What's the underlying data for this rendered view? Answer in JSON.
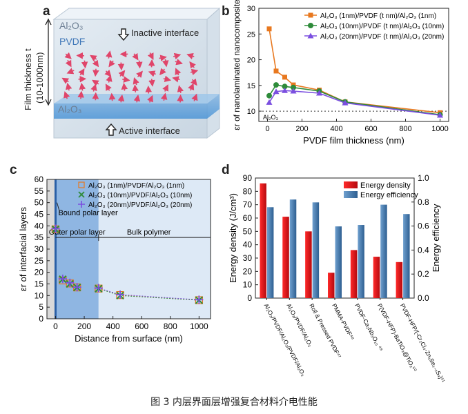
{
  "caption": "图 3  内层界面层增强复合材料介电性能",
  "panel_a": {
    "label": "a",
    "top_layer": "Al₂O₃",
    "middle_layer": "PVDF",
    "bottom_layer": "Al₂O₃",
    "inactive_interface": "Inactive interface",
    "active_interface": "Active interface",
    "thickness_label": "Film thickness t",
    "thickness_range": "(10-1000nm)"
  },
  "chart_data": [
    {
      "panel": "b",
      "type": "line",
      "xlabel": "PVDF film thickness (nm)",
      "ylabel": "εr of nanolaminated nanocomposite",
      "xlim": [
        -50,
        1050
      ],
      "ylim": [
        8,
        30
      ],
      "xticks": [
        0,
        200,
        400,
        600,
        800,
        1000
      ],
      "yticks": [
        10,
        15,
        20,
        25,
        30
      ],
      "reference_line": {
        "y": 10,
        "label": "Al₂O₃"
      },
      "legend_position": "top-right",
      "series": [
        {
          "name": "Al₂O₃ (1nm)/PVDF (t nm)/Al₂O₃ (1nm)",
          "color": "#e8781f",
          "marker": "square",
          "x": [
            10,
            50,
            100,
            150,
            300,
            450,
            1000
          ],
          "y": [
            26,
            17.8,
            16.6,
            15.1,
            14.1,
            11.8,
            9.7
          ]
        },
        {
          "name": "Al₂O₃ (10nm)/PVDF (t nm)/Al₂O₃ (10nm)",
          "color": "#2e8b3a",
          "marker": "circle",
          "x": [
            10,
            50,
            100,
            150,
            300,
            450,
            1000
          ],
          "y": [
            13,
            15.1,
            14.8,
            14.6,
            13.9,
            11.8,
            9.3
          ]
        },
        {
          "name": "Al₂O₃ (20nm)/PVDF (t nm)/Al₂O₃ (20nm)",
          "color": "#7b4fe0",
          "marker": "triangle",
          "x": [
            10,
            50,
            100,
            150,
            300,
            450,
            1000
          ],
          "y": [
            11.7,
            13.8,
            14,
            13.9,
            13.5,
            11.6,
            9.2
          ]
        }
      ]
    },
    {
      "panel": "c",
      "type": "scatter",
      "xlabel": "Distance from surface  (nm)",
      "ylabel": "εr of interfacial layers",
      "xlim": [
        -60,
        1080
      ],
      "ylim": [
        0,
        60
      ],
      "xticks": [
        0,
        200,
        400,
        600,
        800,
        1000
      ],
      "yticks": [
        0,
        5,
        10,
        15,
        20,
        25,
        30,
        35,
        40,
        45,
        50,
        55,
        60
      ],
      "legend_position": "top-right",
      "regions": {
        "bound": "Bound polar layer",
        "outer": "Outer polar layer",
        "bulk": "Bulk polymer"
      },
      "series": [
        {
          "name": "Al₂O₃ (1nm)/PVDF/Al₂O₃ (1nm)",
          "color": "#e8781f",
          "marker": "square-open",
          "x": [
            0,
            50,
            100,
            150,
            300,
            450,
            1000
          ],
          "y": [
            38.5,
            16.5,
            15.2,
            13.5,
            13,
            10.2,
            8
          ]
        },
        {
          "name": "Al₂O₃ (10nm)/PVDF/Al₂O₃ (10nm)",
          "color": "#2e8b3a",
          "marker": "x",
          "x": [
            0,
            50,
            100,
            150,
            300,
            450,
            1000
          ],
          "y": [
            38.5,
            17,
            15,
            13.5,
            13,
            10,
            8
          ]
        },
        {
          "name": "Al₂O₃ (20nm)/PVDF/Al₂O₃ (20nm)",
          "color": "#7b4fe0",
          "marker": "plus",
          "x": [
            0,
            50,
            100,
            150,
            300,
            450,
            1000
          ],
          "y": [
            38.8,
            17.2,
            15.5,
            13.6,
            13.2,
            10.4,
            8.2
          ]
        }
      ]
    },
    {
      "panel": "d",
      "type": "bar",
      "ylabel": "Energy density (J/cm³)",
      "y2label": "Energy efficiency",
      "ylim": [
        0,
        90
      ],
      "y2lim": [
        0,
        1.0
      ],
      "yticks": [
        0,
        10,
        20,
        30,
        40,
        50,
        60,
        70,
        80,
        90
      ],
      "y2ticks": [
        0.0,
        0.2,
        0.4,
        0.6,
        0.8,
        1.0
      ],
      "legend_position": "top-right",
      "categories": [
        "Al₂O₃/PVDF/Al₂O₃/PVDF/Al₂O₃",
        "Al₂O₃/PVDF/Al₂O₃",
        "Roll & Pressed PVDF⁴⁷",
        "PMMA-PVDF⁴⁸",
        "PVDF-Ca₂Nb₃O₁₀ ⁴⁹",
        "P(VDF-HFP)-BaTiO₃@TiO₂⁵⁰",
        "PVDF-HFP/(-Cr₂Cl₃-Zn₁Se₁₋ₓSₓ)⁵¹"
      ],
      "series": [
        {
          "name": "Energy density",
          "color": "#e0141a",
          "axis": "left",
          "values": [
            86,
            61,
            50,
            19,
            36,
            31,
            27
          ]
        },
        {
          "name": "Energy efficiency",
          "color": "#3a6a9c",
          "axis": "right",
          "values": [
            0.757,
            0.821,
            0.797,
            0.597,
            0.609,
            0.778,
            0.7
          ]
        }
      ]
    }
  ]
}
